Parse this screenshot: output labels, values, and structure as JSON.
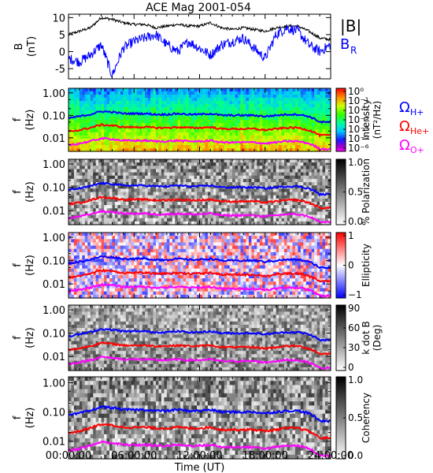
{
  "title": "ACE Mag 2001-054",
  "chart_data": [
    {
      "type": "line",
      "ylabel": "B",
      "yunit": "(nT)",
      "ylim": [
        -8,
        11
      ],
      "yticks": [
        "10",
        "5",
        "0",
        "-5"
      ],
      "series": [
        {
          "name": "|B|",
          "color": "#000000",
          "x": [
            0,
            1,
            2,
            3,
            4,
            5,
            6,
            7,
            8,
            9,
            10,
            11,
            12,
            13,
            14,
            15,
            16,
            17,
            18,
            19,
            20,
            21,
            22,
            23,
            24
          ],
          "values": [
            5,
            6,
            7,
            10,
            9.5,
            8.5,
            8,
            8,
            7,
            7.5,
            8,
            7.5,
            7.5,
            8.5,
            7,
            6.5,
            7,
            6.5,
            6,
            7,
            7.5,
            7.5,
            6,
            4,
            3.5
          ]
        },
        {
          "name": "B",
          "subscript": "R",
          "color": "#0000ff",
          "x": [
            0,
            1,
            2,
            3,
            4,
            5,
            6,
            7,
            8,
            9,
            10,
            11,
            12,
            13,
            14,
            15,
            16,
            17,
            18,
            19,
            20,
            21,
            22,
            23,
            24
          ],
          "values": [
            -2,
            -3,
            -1,
            2,
            -7,
            1,
            3,
            4,
            5,
            2,
            0,
            3,
            1,
            -1,
            2,
            3,
            4,
            1,
            -2,
            5,
            7,
            6,
            2,
            0,
            2
          ]
        }
      ]
    },
    {
      "type": "heatmap",
      "ylabel": "f",
      "yunit": "(Hz)",
      "yticks": [
        "1.00",
        "0.10",
        "0.01"
      ],
      "colorbar": {
        "label": "Intensity",
        "unit": "(nT²/Hz)",
        "ticks": [
          "10⁰",
          "10⁻¹",
          "10⁻²",
          "10⁻³",
          "10⁻⁴",
          "10⁻⁵",
          "10⁻⁶"
        ]
      },
      "legend": [
        {
          "symbol": "Ω",
          "sub": "H+",
          "color": "#0000ff"
        },
        {
          "symbol": "Ω",
          "sub": "He+",
          "color": "#ff0000"
        },
        {
          "symbol": "Ω",
          "sub": "O+",
          "color": "#ff00ff"
        }
      ]
    },
    {
      "type": "heatmap",
      "ylabel": "f",
      "yunit": "(Hz)",
      "yticks": [
        "1.00",
        "0.10",
        "0.01"
      ],
      "colorbar": {
        "label": "% Polarization",
        "unit": "",
        "ticks": [
          "1.0",
          "0.5",
          "0.0"
        ]
      }
    },
    {
      "type": "heatmap",
      "ylabel": "f",
      "yunit": "(Hz)",
      "yticks": [
        "1.00",
        "0.10",
        "0.01"
      ],
      "colorbar": {
        "label": "Ellipticity",
        "unit": "",
        "ticks": [
          "1",
          "0",
          "−1"
        ]
      }
    },
    {
      "type": "heatmap",
      "ylabel": "f",
      "yunit": "(Hz)",
      "yticks": [
        "1.00",
        "0.10",
        "0.01"
      ],
      "colorbar": {
        "label": "k dot B",
        "unit": "(Deg)",
        "ticks": [
          "90",
          "60",
          "30",
          "0"
        ]
      }
    },
    {
      "type": "heatmap",
      "ylabel": "f",
      "yunit": "(Hz)",
      "yticks": [
        "1.00",
        "0.10",
        "0.01"
      ],
      "colorbar": {
        "label": "Coherency",
        "unit": "",
        "ticks": [
          "1.0",
          "0.5",
          "0.0"
        ]
      }
    }
  ],
  "gyrofrequency": {
    "x": [
      0,
      1,
      2,
      3,
      4,
      5,
      6,
      7,
      8,
      9,
      10,
      11,
      12,
      13,
      14,
      15,
      16,
      17,
      18,
      19,
      20,
      21,
      22,
      23,
      24
    ],
    "h_plus": [
      0.075,
      0.09,
      0.11,
      0.15,
      0.14,
      0.12,
      0.12,
      0.12,
      0.11,
      0.11,
      0.12,
      0.11,
      0.11,
      0.12,
      0.1,
      0.1,
      0.1,
      0.1,
      0.09,
      0.1,
      0.11,
      0.11,
      0.09,
      0.05,
      0.05
    ],
    "he_plus": [
      0.019,
      0.022,
      0.028,
      0.038,
      0.035,
      0.03,
      0.03,
      0.03,
      0.028,
      0.028,
      0.03,
      0.028,
      0.028,
      0.03,
      0.025,
      0.025,
      0.025,
      0.025,
      0.022,
      0.025,
      0.028,
      0.028,
      0.022,
      0.013,
      0.013
    ],
    "o_plus": [
      0.0047,
      0.0056,
      0.007,
      0.0094,
      0.0088,
      0.0075,
      0.0075,
      0.0075,
      0.007,
      0.007,
      0.0075,
      0.007,
      0.007,
      0.0075,
      0.0063,
      0.0063,
      0.0063,
      0.0063,
      0.0056,
      0.0063,
      0.007,
      0.007,
      0.0056,
      0.0032,
      0.0032
    ]
  },
  "x_axis": {
    "xlabel": "Time (UT)",
    "xlim": [
      0,
      24
    ],
    "tick_values": [
      0,
      6,
      12,
      18,
      24
    ],
    "tick_labels": [
      "00:00:00",
      "06:00:00",
      "12:00:00",
      "18:00:00",
      "24:00:00"
    ]
  }
}
